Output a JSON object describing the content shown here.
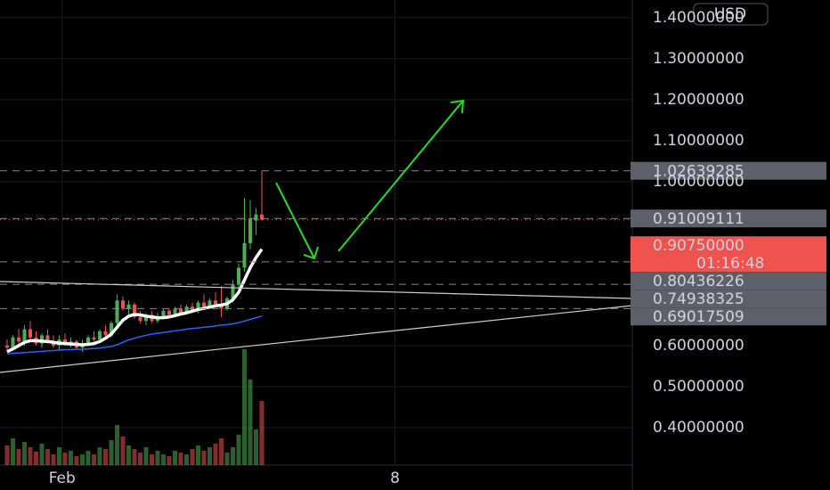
{
  "chart_data": {
    "type": "candlestick",
    "currency": "USD",
    "x": [
      0,
      1,
      2,
      3,
      4,
      5,
      6,
      7,
      8,
      9,
      10,
      11,
      12,
      13,
      14,
      15,
      16,
      17,
      18,
      19,
      20,
      21,
      22,
      23,
      24,
      25,
      26,
      27,
      28,
      29,
      30,
      31,
      32,
      33,
      34,
      35,
      36,
      37,
      38,
      39,
      40,
      41,
      42,
      43,
      44
    ],
    "open": [
      0.6,
      0.595,
      0.62,
      0.61,
      0.64,
      0.62,
      0.605,
      0.625,
      0.61,
      0.6,
      0.615,
      0.605,
      0.61,
      0.595,
      0.605,
      0.62,
      0.615,
      0.635,
      0.625,
      0.655,
      0.71,
      0.69,
      0.7,
      0.67,
      0.66,
      0.675,
      0.66,
      0.67,
      0.685,
      0.675,
      0.69,
      0.68,
      0.695,
      0.685,
      0.705,
      0.695,
      0.71,
      0.7,
      0.69,
      0.715,
      0.75,
      0.79,
      0.85,
      0.905,
      0.92
    ],
    "high": [
      0.615,
      0.625,
      0.64,
      0.65,
      0.66,
      0.635,
      0.63,
      0.64,
      0.625,
      0.625,
      0.63,
      0.62,
      0.615,
      0.615,
      0.625,
      0.635,
      0.64,
      0.65,
      0.66,
      0.725,
      0.72,
      0.71,
      0.705,
      0.685,
      0.68,
      0.685,
      0.68,
      0.69,
      0.69,
      0.695,
      0.7,
      0.7,
      0.705,
      0.71,
      0.725,
      0.715,
      0.73,
      0.745,
      0.72,
      0.76,
      0.8,
      0.96,
      0.955,
      0.935,
      1.026
    ],
    "low": [
      0.585,
      0.59,
      0.605,
      0.6,
      0.615,
      0.6,
      0.595,
      0.605,
      0.595,
      0.59,
      0.6,
      0.595,
      0.59,
      0.585,
      0.6,
      0.61,
      0.61,
      0.62,
      0.62,
      0.65,
      0.685,
      0.67,
      0.665,
      0.655,
      0.65,
      0.655,
      0.655,
      0.665,
      0.67,
      0.67,
      0.675,
      0.675,
      0.68,
      0.68,
      0.69,
      0.69,
      0.695,
      0.67,
      0.685,
      0.705,
      0.74,
      0.78,
      0.835,
      0.87,
      0.905
    ],
    "close": [
      0.595,
      0.62,
      0.61,
      0.64,
      0.62,
      0.605,
      0.625,
      0.61,
      0.6,
      0.615,
      0.605,
      0.61,
      0.595,
      0.605,
      0.62,
      0.615,
      0.635,
      0.625,
      0.655,
      0.71,
      0.69,
      0.7,
      0.67,
      0.66,
      0.675,
      0.66,
      0.67,
      0.685,
      0.675,
      0.69,
      0.68,
      0.695,
      0.685,
      0.705,
      0.695,
      0.71,
      0.7,
      0.69,
      0.715,
      0.75,
      0.79,
      0.85,
      0.91,
      0.92,
      0.9075
    ],
    "volume": [
      22,
      30,
      18,
      26,
      20,
      15,
      24,
      18,
      12,
      20,
      14,
      16,
      10,
      12,
      16,
      12,
      20,
      18,
      28,
      45,
      32,
      22,
      18,
      14,
      20,
      12,
      16,
      12,
      10,
      16,
      14,
      12,
      18,
      22,
      16,
      20,
      24,
      30,
      14,
      20,
      34,
      130,
      96,
      40,
      72
    ],
    "up_color": "#4caf50",
    "down_color": "#ef5350",
    "ma": [
      {
        "color": "#ffffff",
        "values": [
          0.585,
          0.592,
          0.6,
          0.608,
          0.612,
          0.612,
          0.611,
          0.61,
          0.608,
          0.606,
          0.605,
          0.604,
          0.603,
          0.602,
          0.603,
          0.605,
          0.61,
          0.618,
          0.628,
          0.645,
          0.662,
          0.672,
          0.676,
          0.675,
          0.672,
          0.67,
          0.668,
          0.668,
          0.67,
          0.673,
          0.677,
          0.68,
          0.684,
          0.688,
          0.691,
          0.694,
          0.697,
          0.699,
          0.702,
          0.712,
          0.73,
          0.76,
          0.79,
          0.815,
          0.835
        ]
      },
      {
        "color": "#2962ff",
        "values": [
          0.58,
          0.581,
          0.582,
          0.583,
          0.584,
          0.585,
          0.586,
          0.587,
          0.588,
          0.589,
          0.59,
          0.59,
          0.591,
          0.591,
          0.592,
          0.593,
          0.594,
          0.596,
          0.598,
          0.602,
          0.608,
          0.614,
          0.618,
          0.622,
          0.625,
          0.628,
          0.63,
          0.632,
          0.634,
          0.636,
          0.638,
          0.64,
          0.642,
          0.643,
          0.645,
          0.646,
          0.648,
          0.65,
          0.651,
          0.653,
          0.656,
          0.66,
          0.664,
          0.668,
          0.672
        ]
      }
    ],
    "ylim": [
      0.313,
      1.443
    ],
    "yticks": [
      {
        "value": 1.4,
        "label": "1.40000000"
      },
      {
        "value": 1.3,
        "label": "1.30000000"
      },
      {
        "value": 1.2,
        "label": "1.20000000"
      },
      {
        "value": 1.1,
        "label": "1.10000000"
      },
      {
        "value": 1.0,
        "label": "1.00000000"
      },
      {
        "value": 0.6,
        "label": "0.60000000"
      },
      {
        "value": 0.5,
        "label": "0.50000000"
      },
      {
        "value": 0.4,
        "label": "0.40000000"
      }
    ],
    "xlim": [
      -1.23,
      108
    ],
    "xticks": [
      {
        "value": 9.5,
        "label": "Feb"
      },
      {
        "value": 67,
        "label": "8"
      }
    ],
    "vlim": [
      0,
      140
    ],
    "price_labels": [
      {
        "value": 1.02639285,
        "label": "1.02639285"
      },
      {
        "value": 0.91009111,
        "label": "0.91009111"
      },
      {
        "value": 0.80436226,
        "label": "0.80436226"
      },
      {
        "value": 0.74938325,
        "label": "0.74938325"
      },
      {
        "value": 0.69017509,
        "label": "0.69017509"
      }
    ],
    "last_price": {
      "value": 0.9075,
      "label": "0.90750000",
      "countdown": "01:16:48"
    }
  }
}
